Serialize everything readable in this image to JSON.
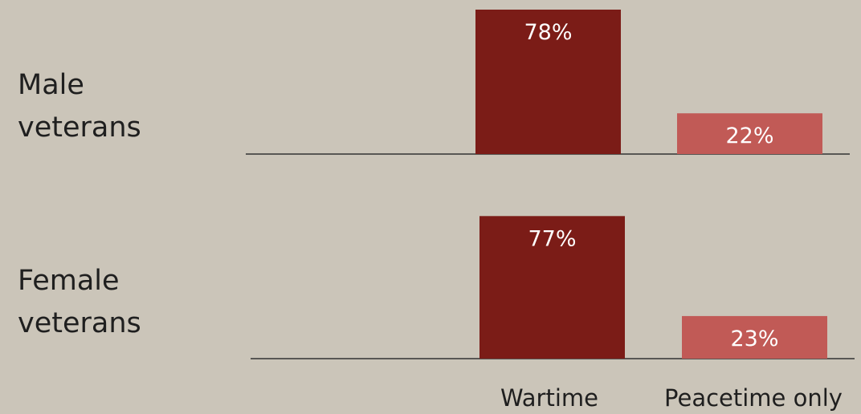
{
  "chart_data": {
    "type": "bar",
    "title": "",
    "xlabel": "",
    "ylabel": "",
    "categories": [
      "Wartime",
      "Peacetime only"
    ],
    "colors": {
      "Wartime": "#7b1c17",
      "Peacetime only": "#c15a56",
      "baseline": "#333333",
      "background": "#cbc5b9"
    },
    "groups": [
      {
        "label_line1": "Male",
        "label_line2": "veterans",
        "values": [
          78,
          22
        ],
        "value_labels": [
          "78%",
          "22%"
        ]
      },
      {
        "label_line1": "Female",
        "label_line2": "veterans",
        "values": [
          77,
          23
        ],
        "value_labels": [
          "77%",
          "23%"
        ]
      }
    ],
    "ylim": [
      0,
      78
    ]
  }
}
